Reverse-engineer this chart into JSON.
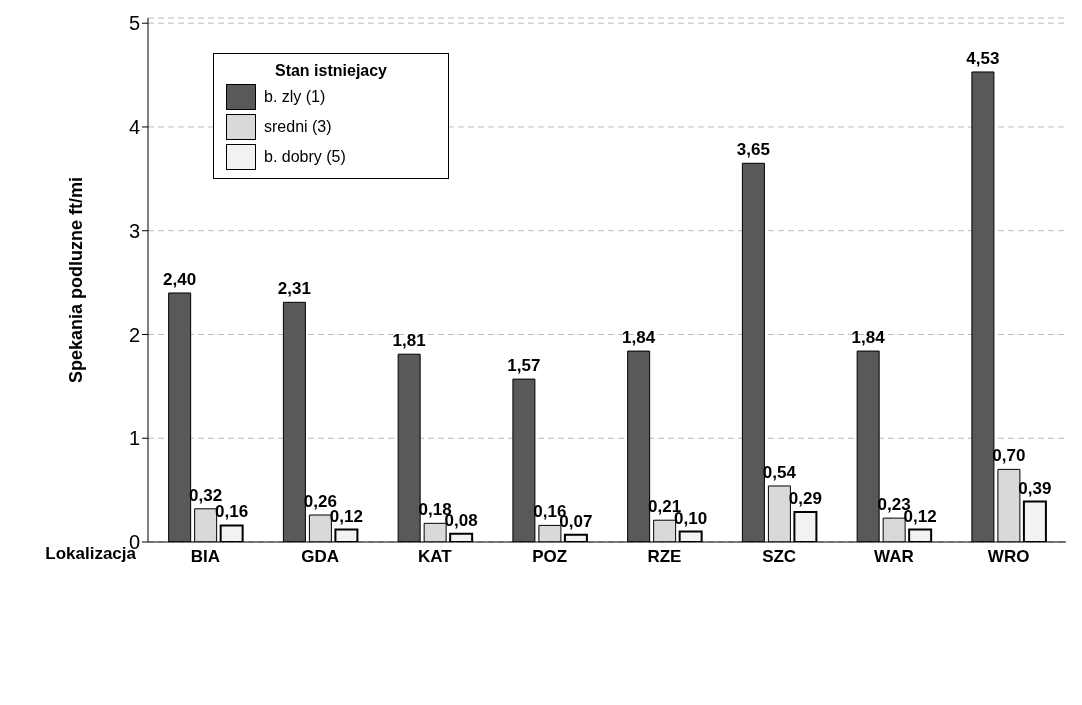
{
  "chart_data": {
    "type": "bar",
    "xlabel": "Lokalizacja",
    "ylabel": "Spekania podluzne ft/mi",
    "legend_title": "Stan istniejacy",
    "categories": [
      "BIA",
      "GDA",
      "KAT",
      "POZ",
      "RZE",
      "SZC",
      "WAR",
      "WRO"
    ],
    "series": [
      {
        "name": "b. zly (1)",
        "color": "#595959",
        "values": [
          2.4,
          2.31,
          1.81,
          1.57,
          1.84,
          3.65,
          1.84,
          4.53
        ],
        "value_labels": [
          "2,40",
          "2,31",
          "1,81",
          "1,57",
          "1,84",
          "3,65",
          "1,84",
          "4,53"
        ]
      },
      {
        "name": "sredni (3)",
        "color": "#d9d9d9",
        "values": [
          0.32,
          0.26,
          0.18,
          0.16,
          0.21,
          0.54,
          0.23,
          0.7
        ],
        "value_labels": [
          "0,32",
          "0,26",
          "0,18",
          "0,16",
          "0,21",
          "0,54",
          "0,23",
          "0,70"
        ]
      },
      {
        "name": "b. dobry (5)",
        "color": "#f2f2f2",
        "values": [
          0.16,
          0.12,
          0.08,
          0.07,
          0.1,
          0.29,
          0.12,
          0.39
        ],
        "value_labels": [
          "0,16",
          "0,12",
          "0,08",
          "0,07",
          "0,10",
          "0,29",
          "0,12",
          "0,39"
        ]
      }
    ],
    "ylim": [
      0,
      5.05
    ],
    "yticks": [
      0,
      1,
      2,
      3,
      4,
      5
    ],
    "grid": "y",
    "legend": "top left"
  }
}
